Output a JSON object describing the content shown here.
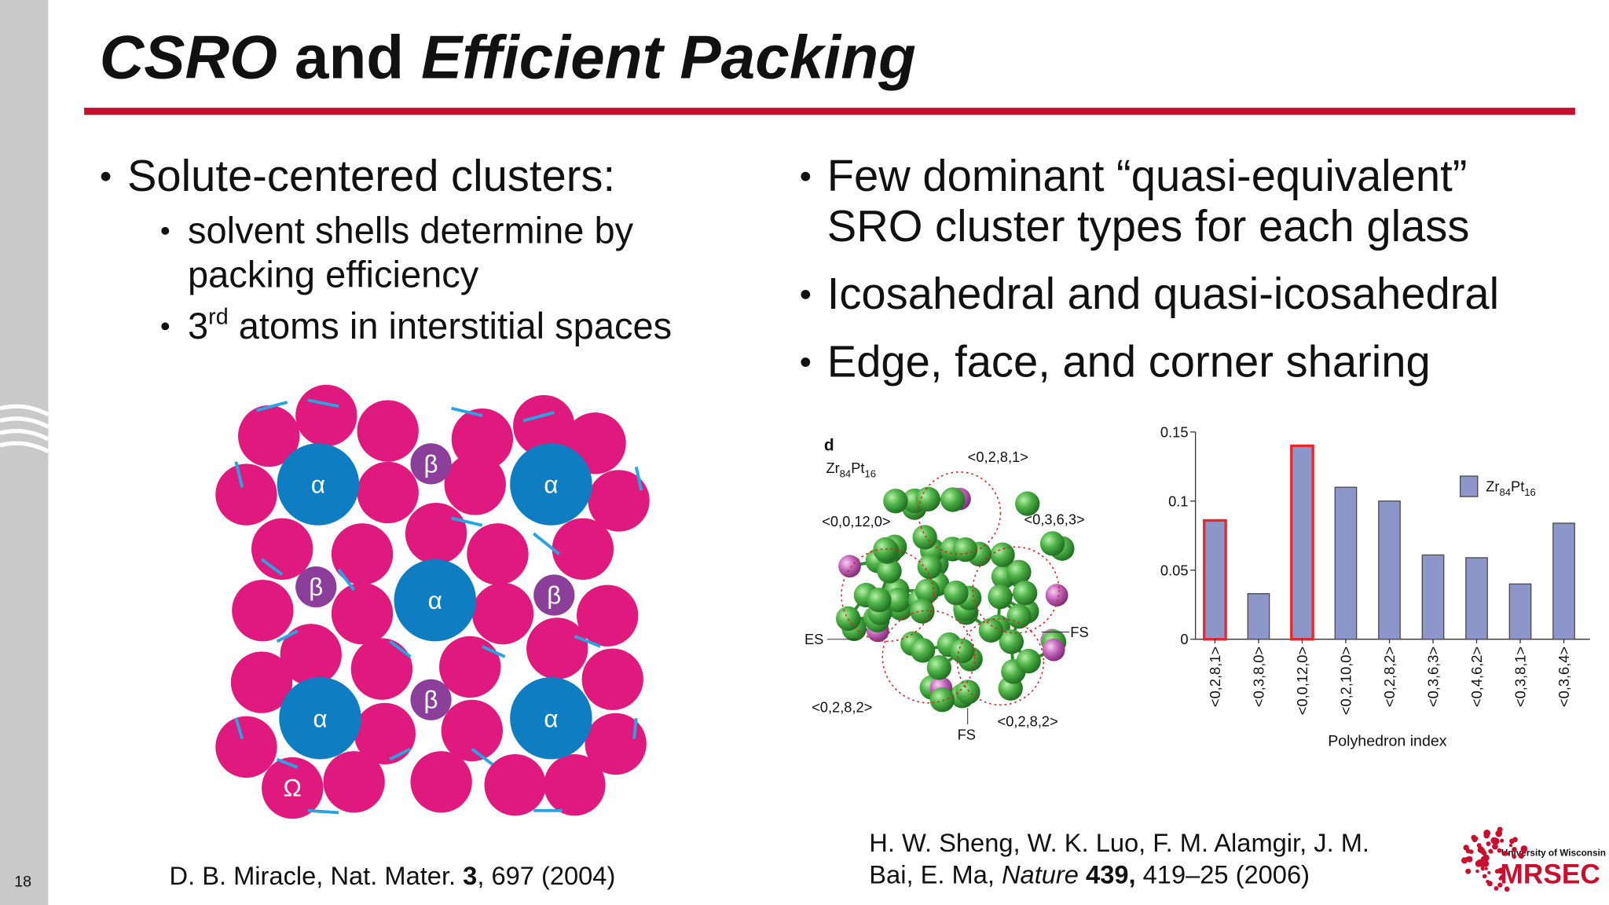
{
  "slide_number": "18",
  "title": [
    "CSRO",
    " and ",
    "Efficient Packing"
  ],
  "left_bullets": {
    "main": "Solute-centered clusters:",
    "sub_1": [
      "solvent shells determine by",
      "packing efficiency"
    ],
    "sub_2": [
      "3",
      "rd",
      " atoms in interstitial spaces"
    ]
  },
  "right_bullets": [
    [
      "Few dominant “quasi-equivalent”",
      "SRO cluster types for each glass"
    ],
    [
      "Icosahedral and quasi-icosahedral"
    ],
    [
      "Edge, face, and corner sharing"
    ]
  ],
  "diagram_labels": {
    "alpha": "α",
    "beta": "β",
    "omega": "Ω"
  },
  "left_caption": [
    "D. B. Miracle, Nat. Mater. ",
    "3",
    ", 697 (2004)"
  ],
  "right_caption": [
    [
      "H. W. Sheng, W. K. Luo, F. M. Alamgir, J. M."
    ],
    [
      "Bai, E. Ma, ",
      "Nature",
      " 439,",
      " 419–25 (2006)"
    ]
  ],
  "figure_labels": {
    "panel": "d",
    "composition": [
      "Zr",
      "84",
      "Pt",
      "16"
    ],
    "annotations": [
      "<0,2,8,1>",
      "<0,0,12,0>",
      "<0,3,6,3>",
      "ES",
      "FS",
      "<0,2,8,2>",
      "FS",
      "<0,2,8,2>"
    ]
  },
  "logo": {
    "university": "University of Wisconsin",
    "name": "MRSEC"
  },
  "chart_data": {
    "type": "bar",
    "categories": [
      "<0,2,8,1>",
      "<0,3,8,0>",
      "<0,0,12,0>",
      "<0,2,10,0>",
      "<0,2,8,2>",
      "<0,3,6,3>",
      "<0,4,6,2>",
      "<0,3,8,1>",
      "<0,3,6,4>"
    ],
    "series": [
      {
        "name": [
          "Zr",
          "84",
          "Pt",
          "16"
        ],
        "color": "#8c96c8",
        "values": [
          0.086,
          0.033,
          0.14,
          0.11,
          0.1,
          0.061,
          0.059,
          0.04,
          0.084
        ]
      }
    ],
    "edge_colors": [
      "#e8262a",
      "#4a4a4a",
      "#e8262a",
      "#4a4a4a",
      "#4a4a4a",
      "#4a4a4a",
      "#4a4a4a",
      "#4a4a4a",
      "#4a4a4a"
    ],
    "ylim": [
      0,
      0.15
    ],
    "yticks": [
      0,
      0.05,
      0.1,
      0.15
    ],
    "xlabel": "Polyhedron index"
  }
}
